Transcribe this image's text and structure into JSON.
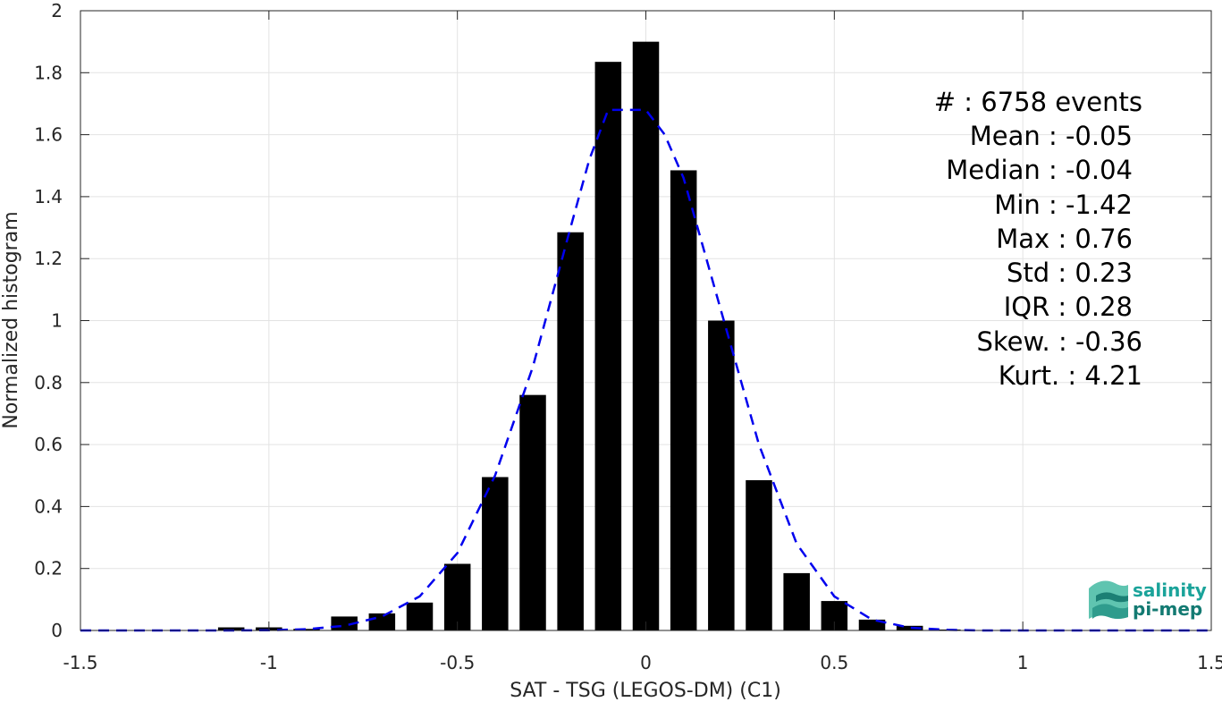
{
  "chart_data": {
    "type": "bar",
    "xlabel": "SAT - TSG (LEGOS-DM) (C1)",
    "ylabel": "Normalized histogram",
    "xlim": [
      -1.5,
      1.5
    ],
    "ylim": [
      0,
      2
    ],
    "xticks": [
      -1.5,
      -1,
      -0.5,
      0,
      0.5,
      1,
      1.5
    ],
    "xtick_labels": [
      "-1.5",
      "-1",
      "-0.5",
      "0",
      "0.5",
      "1",
      "1.5"
    ],
    "yticks": [
      0,
      0.2,
      0.4,
      0.6,
      0.8,
      1,
      1.2,
      1.4,
      1.6,
      1.8,
      2
    ],
    "ytick_labels": [
      "0",
      "0.2",
      "0.4",
      "0.6",
      "0.8",
      "1",
      "1.2",
      "1.4",
      "1.6",
      "1.8",
      "2"
    ],
    "grid": true,
    "bar_color": "#000000",
    "bar_width": 0.07,
    "bars": {
      "x": [
        -1.1,
        -1.0,
        -0.9,
        -0.8,
        -0.7,
        -0.6,
        -0.5,
        -0.4,
        -0.3,
        -0.2,
        -0.1,
        0.0,
        0.1,
        0.2,
        0.3,
        0.4,
        0.5,
        0.6,
        0.7,
        0.8
      ],
      "values": [
        0.01,
        0.01,
        0.005,
        0.045,
        0.055,
        0.09,
        0.215,
        0.495,
        0.76,
        1.285,
        1.835,
        1.9,
        1.485,
        1.0,
        0.485,
        0.185,
        0.095,
        0.035,
        0.015,
        0.003
      ]
    },
    "fit": {
      "style": "dashed",
      "color": "#0000ee",
      "x": [
        -1.5,
        -1.3,
        -1.1,
        -1.0,
        -0.9,
        -0.8,
        -0.7,
        -0.6,
        -0.5,
        -0.4,
        -0.3,
        -0.2,
        -0.15,
        -0.1,
        -0.05,
        0.0,
        0.05,
        0.1,
        0.2,
        0.3,
        0.4,
        0.5,
        0.6,
        0.7,
        0.8,
        0.9,
        1.0,
        1.2,
        1.5
      ],
      "y": [
        0.0,
        0.0,
        0.0,
        0.001,
        0.004,
        0.015,
        0.045,
        0.11,
        0.25,
        0.5,
        0.85,
        1.3,
        1.52,
        1.68,
        1.68,
        1.68,
        1.6,
        1.46,
        1.03,
        0.6,
        0.28,
        0.11,
        0.035,
        0.009,
        0.002,
        0.0,
        0.0,
        0.0,
        0.0
      ]
    }
  },
  "stats": {
    "count": "#  : 6758 events",
    "mean": "Mean : -0.05",
    "median": "Median : -0.04",
    "min": "Min : -1.42",
    "max": "Max : 0.76",
    "std": "Std : 0.23",
    "iqr": "IQR : 0.28",
    "skew": "Skew. : -0.36",
    "kurt": "Kurt. : 4.21"
  },
  "logo": {
    "line1": "salinity",
    "line2": "pi-mep",
    "color1": "#1aa39a",
    "color2": "#137a72"
  }
}
